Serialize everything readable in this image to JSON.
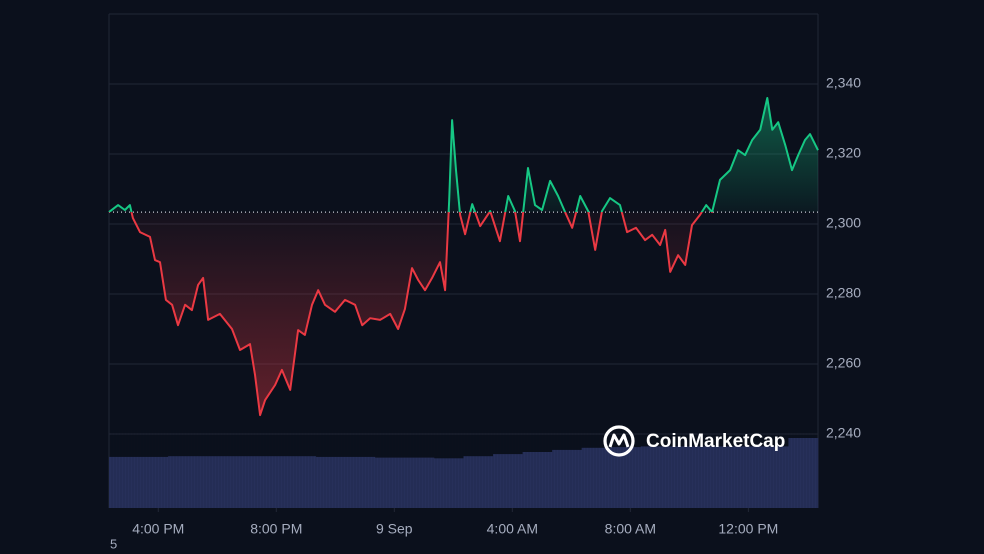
{
  "chart_data": {
    "type": "line",
    "x": [
      14.33,
      14.64,
      14.87,
      15.04,
      15.14,
      15.38,
      15.72,
      15.89,
      16.06,
      16.26,
      16.47,
      16.67,
      16.91,
      17.14,
      17.35,
      17.52,
      17.69,
      18.09,
      18.5,
      18.77,
      19.11,
      19.28,
      19.45,
      19.62,
      19.96,
      20.19,
      20.47,
      20.74,
      20.97,
      21.21,
      21.42,
      21.65,
      21.99,
      22.33,
      22.67,
      22.91,
      23.18,
      23.52,
      23.86,
      24.13,
      24.36,
      24.6,
      24.81,
      25.04,
      25.28,
      25.55,
      25.72,
      25.86,
      25.96,
      26.09,
      26.23,
      26.4,
      26.64,
      26.91,
      27.25,
      27.58,
      27.86,
      28.09,
      28.26,
      28.53,
      28.77,
      29.01,
      29.28,
      29.55,
      29.79,
      30.03,
      30.3,
      30.57,
      30.81,
      31.04,
      31.31,
      31.65,
      31.89,
      32.19,
      32.5,
      32.74,
      33.01,
      33.18,
      33.35,
      33.62,
      33.86,
      34.09,
      34.36,
      34.57,
      34.77,
      35.04,
      35.38,
      35.65,
      35.89,
      36.13,
      36.4,
      36.64,
      36.81,
      37.01,
      37.25,
      37.48,
      37.69,
      37.92,
      38.09,
      38.36
    ],
    "values": [
      2303.4,
      2305.4,
      2304,
      2305.4,
      2301.7,
      2297.7,
      2296.3,
      2289.7,
      2289.1,
      2278.3,
      2276.9,
      2271.1,
      2276.9,
      2275.4,
      2282.6,
      2284.6,
      2272.6,
      2274.3,
      2270,
      2264,
      2265.7,
      2256.9,
      2245.4,
      2249.7,
      2254,
      2258.3,
      2252.6,
      2269.7,
      2268.3,
      2276.9,
      2281.1,
      2276.9,
      2274.9,
      2278.3,
      2276.9,
      2271.1,
      2273.1,
      2272.6,
      2274.3,
      2270,
      2275.7,
      2287.4,
      2284,
      2281.1,
      2284.6,
      2289.1,
      2281.1,
      2306.9,
      2329.7,
      2315.4,
      2302.6,
      2297.1,
      2305.7,
      2299.4,
      2303.7,
      2295.1,
      2308,
      2303.7,
      2295.1,
      2316,
      2305.4,
      2304,
      2312.3,
      2308,
      2303.4,
      2298.9,
      2308,
      2303.7,
      2292.6,
      2303.7,
      2307.4,
      2305.4,
      2297.7,
      2298.9,
      2295.4,
      2296.9,
      2294,
      2298.3,
      2286.3,
      2291.1,
      2288.3,
      2299.7,
      2302.6,
      2305.4,
      2303.4,
      2312.6,
      2315.4,
      2321.1,
      2319.7,
      2324,
      2326.9,
      2336,
      2326.9,
      2329.1,
      2322.6,
      2315.4,
      2319.7,
      2324,
      2325.7,
      2321.1
    ],
    "baseline": 2303.4,
    "colors": {
      "above": "#16c784",
      "below": "#ea3943"
    },
    "xlim": [
      14.33,
      38.36
    ],
    "xticks": [
      {
        "value": 16,
        "label": "4:00 PM"
      },
      {
        "value": 20,
        "label": "8:00 PM"
      },
      {
        "value": 24,
        "label": "9 Sep"
      },
      {
        "value": 28,
        "label": "4:00 AM"
      },
      {
        "value": 32,
        "label": "8:00 AM"
      },
      {
        "value": 36,
        "label": "12:00 PM"
      }
    ],
    "ylim": [
      2220,
      2360
    ],
    "yticks": [
      {
        "value": 2240,
        "label": "2,240"
      },
      {
        "value": 2260,
        "label": "2,260"
      },
      {
        "value": 2280,
        "label": "2,280"
      },
      {
        "value": 2300,
        "label": "2,300"
      },
      {
        "value": 2320,
        "label": "2,320"
      },
      {
        "value": 2340,
        "label": "2,340"
      }
    ],
    "grid": true,
    "volume": {
      "values": [
        73,
        73,
        74,
        74,
        74,
        74,
        74,
        73,
        73,
        72,
        72,
        71,
        74,
        77,
        80,
        83,
        86,
        87,
        88,
        88,
        88,
        88,
        88,
        100
      ],
      "ylim": [
        0,
        100
      ],
      "color": "#27305a"
    },
    "watermark": "CoinMarketCap",
    "footnote": "5"
  }
}
